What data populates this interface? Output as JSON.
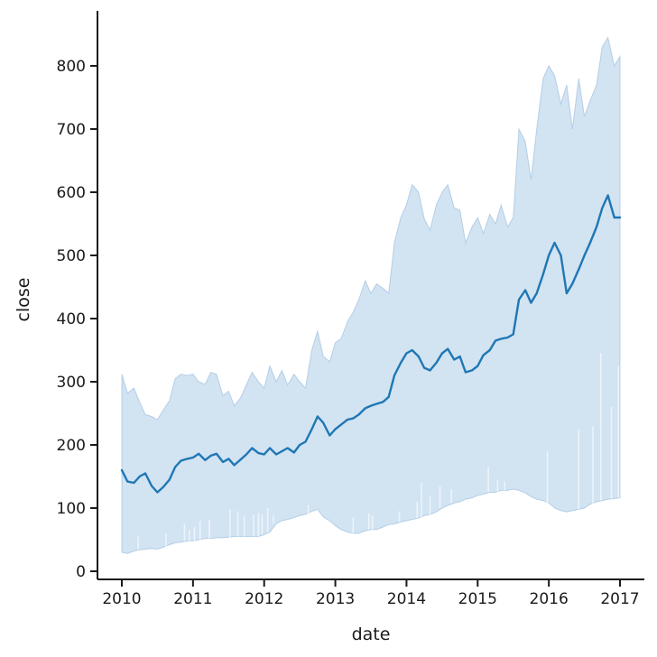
{
  "chart_data": {
    "type": "line",
    "title": "",
    "xlabel": "date",
    "ylabel": "close",
    "xlim": [
      2009.9,
      2017.35
    ],
    "ylim": [
      -12,
      887
    ],
    "x_ticks": [
      2010,
      2011,
      2012,
      2013,
      2014,
      2015,
      2016,
      2017
    ],
    "x_tick_labels": [
      "2010",
      "2011",
      "2012",
      "2013",
      "2014",
      "2015",
      "2016",
      "2017"
    ],
    "y_ticks": [
      0,
      100,
      200,
      300,
      400,
      500,
      600,
      700,
      800
    ],
    "y_tick_labels": [
      "0",
      "100",
      "200",
      "300",
      "400",
      "500",
      "600",
      "700",
      "800"
    ],
    "grid": false,
    "legend": "none",
    "colors": {
      "line": "#1f77b4",
      "band": "#a6c8e6",
      "band_edge": "#8db5da",
      "axis": "#1a1a1a"
    },
    "series": [
      {
        "values": [
          [
            2010.0,
            160
          ],
          [
            2010.08,
            142
          ],
          [
            2010.17,
            140
          ],
          [
            2010.25,
            150
          ],
          [
            2010.33,
            155
          ],
          [
            2010.42,
            135
          ],
          [
            2010.5,
            125
          ],
          [
            2010.58,
            133
          ],
          [
            2010.67,
            145
          ],
          [
            2010.75,
            165
          ],
          [
            2010.83,
            175
          ],
          [
            2010.92,
            178
          ],
          [
            2011.0,
            180
          ],
          [
            2011.08,
            186
          ],
          [
            2011.17,
            176
          ],
          [
            2011.25,
            183
          ],
          [
            2011.33,
            186
          ],
          [
            2011.42,
            173
          ],
          [
            2011.5,
            178
          ],
          [
            2011.58,
            168
          ],
          [
            2011.67,
            177
          ],
          [
            2011.75,
            185
          ],
          [
            2011.83,
            195
          ],
          [
            2011.92,
            187
          ],
          [
            2012.0,
            185
          ],
          [
            2012.08,
            195
          ],
          [
            2012.17,
            185
          ],
          [
            2012.25,
            190
          ],
          [
            2012.33,
            195
          ],
          [
            2012.42,
            188
          ],
          [
            2012.5,
            200
          ],
          [
            2012.58,
            205
          ],
          [
            2012.67,
            225
          ],
          [
            2012.75,
            245
          ],
          [
            2012.83,
            235
          ],
          [
            2012.92,
            215
          ],
          [
            2013.0,
            225
          ],
          [
            2013.08,
            232
          ],
          [
            2013.17,
            240
          ],
          [
            2013.25,
            242
          ],
          [
            2013.33,
            248
          ],
          [
            2013.42,
            258
          ],
          [
            2013.5,
            262
          ],
          [
            2013.58,
            265
          ],
          [
            2013.67,
            268
          ],
          [
            2013.75,
            276
          ],
          [
            2013.83,
            310
          ],
          [
            2013.92,
            330
          ],
          [
            2014.0,
            345
          ],
          [
            2014.08,
            350
          ],
          [
            2014.17,
            340
          ],
          [
            2014.25,
            322
          ],
          [
            2014.33,
            318
          ],
          [
            2014.42,
            330
          ],
          [
            2014.5,
            345
          ],
          [
            2014.58,
            352
          ],
          [
            2014.67,
            335
          ],
          [
            2014.75,
            340
          ],
          [
            2014.83,
            315
          ],
          [
            2014.92,
            318
          ],
          [
            2015.0,
            325
          ],
          [
            2015.08,
            342
          ],
          [
            2015.17,
            350
          ],
          [
            2015.25,
            365
          ],
          [
            2015.33,
            368
          ],
          [
            2015.42,
            370
          ],
          [
            2015.5,
            375
          ],
          [
            2015.58,
            430
          ],
          [
            2015.67,
            445
          ],
          [
            2015.75,
            425
          ],
          [
            2015.83,
            440
          ],
          [
            2015.92,
            470
          ],
          [
            2016.0,
            500
          ],
          [
            2016.08,
            520
          ],
          [
            2016.17,
            500
          ],
          [
            2016.25,
            440
          ],
          [
            2016.33,
            455
          ],
          [
            2016.42,
            478
          ],
          [
            2016.5,
            500
          ],
          [
            2016.58,
            520
          ],
          [
            2016.67,
            545
          ],
          [
            2016.75,
            575
          ],
          [
            2016.83,
            595
          ],
          [
            2016.92,
            560
          ],
          [
            2017.0,
            560
          ]
        ]
      }
    ],
    "band_upper": [
      [
        2010.0,
        312
      ],
      [
        2010.08,
        282
      ],
      [
        2010.17,
        290
      ],
      [
        2010.25,
        268
      ],
      [
        2010.33,
        248
      ],
      [
        2010.42,
        245
      ],
      [
        2010.5,
        240
      ],
      [
        2010.58,
        255
      ],
      [
        2010.67,
        270
      ],
      [
        2010.75,
        305
      ],
      [
        2010.83,
        312
      ],
      [
        2010.92,
        310
      ],
      [
        2011.0,
        312
      ],
      [
        2011.08,
        300
      ],
      [
        2011.17,
        296
      ],
      [
        2011.25,
        315
      ],
      [
        2011.33,
        312
      ],
      [
        2011.42,
        278
      ],
      [
        2011.5,
        285
      ],
      [
        2011.58,
        262
      ],
      [
        2011.67,
        275
      ],
      [
        2011.75,
        295
      ],
      [
        2011.83,
        315
      ],
      [
        2011.92,
        300
      ],
      [
        2012.0,
        290
      ],
      [
        2012.08,
        325
      ],
      [
        2012.17,
        300
      ],
      [
        2012.25,
        318
      ],
      [
        2012.33,
        295
      ],
      [
        2012.42,
        312
      ],
      [
        2012.5,
        300
      ],
      [
        2012.58,
        290
      ],
      [
        2012.67,
        350
      ],
      [
        2012.75,
        380
      ],
      [
        2012.83,
        340
      ],
      [
        2012.92,
        332
      ],
      [
        2013.0,
        362
      ],
      [
        2013.08,
        368
      ],
      [
        2013.17,
        395
      ],
      [
        2013.25,
        410
      ],
      [
        2013.33,
        430
      ],
      [
        2013.42,
        460
      ],
      [
        2013.5,
        440
      ],
      [
        2013.58,
        455
      ],
      [
        2013.67,
        448
      ],
      [
        2013.75,
        440
      ],
      [
        2013.83,
        520
      ],
      [
        2013.92,
        560
      ],
      [
        2014.0,
        580
      ],
      [
        2014.08,
        612
      ],
      [
        2014.17,
        600
      ],
      [
        2014.25,
        558
      ],
      [
        2014.33,
        540
      ],
      [
        2014.42,
        580
      ],
      [
        2014.5,
        600
      ],
      [
        2014.58,
        612
      ],
      [
        2014.67,
        575
      ],
      [
        2014.75,
        572
      ],
      [
        2014.83,
        520
      ],
      [
        2014.92,
        545
      ],
      [
        2015.0,
        560
      ],
      [
        2015.08,
        535
      ],
      [
        2015.17,
        565
      ],
      [
        2015.25,
        550
      ],
      [
        2015.33,
        580
      ],
      [
        2015.42,
        545
      ],
      [
        2015.5,
        560
      ],
      [
        2015.58,
        700
      ],
      [
        2015.67,
        680
      ],
      [
        2015.75,
        620
      ],
      [
        2015.83,
        700
      ],
      [
        2015.92,
        780
      ],
      [
        2016.0,
        800
      ],
      [
        2016.08,
        785
      ],
      [
        2016.17,
        740
      ],
      [
        2016.25,
        770
      ],
      [
        2016.33,
        700
      ],
      [
        2016.42,
        780
      ],
      [
        2016.5,
        720
      ],
      [
        2016.58,
        745
      ],
      [
        2016.67,
        770
      ],
      [
        2016.75,
        830
      ],
      [
        2016.83,
        845
      ],
      [
        2016.92,
        800
      ],
      [
        2017.0,
        815
      ]
    ],
    "band_lower": [
      [
        2010.0,
        30
      ],
      [
        2010.08,
        28
      ],
      [
        2010.17,
        32
      ],
      [
        2010.25,
        34
      ],
      [
        2010.33,
        35
      ],
      [
        2010.42,
        36
      ],
      [
        2010.5,
        35
      ],
      [
        2010.58,
        38
      ],
      [
        2010.67,
        42
      ],
      [
        2010.75,
        45
      ],
      [
        2010.83,
        46
      ],
      [
        2010.92,
        48
      ],
      [
        2011.0,
        48
      ],
      [
        2011.08,
        50
      ],
      [
        2011.17,
        52
      ],
      [
        2011.25,
        52
      ],
      [
        2011.33,
        53
      ],
      [
        2011.42,
        53
      ],
      [
        2011.5,
        54
      ],
      [
        2011.58,
        55
      ],
      [
        2011.67,
        55
      ],
      [
        2011.75,
        55
      ],
      [
        2011.83,
        55
      ],
      [
        2011.92,
        55
      ],
      [
        2012.0,
        58
      ],
      [
        2012.08,
        62
      ],
      [
        2012.17,
        75
      ],
      [
        2012.25,
        80
      ],
      [
        2012.33,
        82
      ],
      [
        2012.42,
        85
      ],
      [
        2012.5,
        88
      ],
      [
        2012.58,
        90
      ],
      [
        2012.67,
        95
      ],
      [
        2012.75,
        98
      ],
      [
        2012.83,
        86
      ],
      [
        2012.92,
        80
      ],
      [
        2013.0,
        72
      ],
      [
        2013.08,
        66
      ],
      [
        2013.17,
        62
      ],
      [
        2013.25,
        60
      ],
      [
        2013.33,
        60
      ],
      [
        2013.42,
        64
      ],
      [
        2013.5,
        66
      ],
      [
        2013.58,
        66
      ],
      [
        2013.67,
        70
      ],
      [
        2013.75,
        74
      ],
      [
        2013.83,
        75
      ],
      [
        2013.92,
        78
      ],
      [
        2014.0,
        80
      ],
      [
        2014.08,
        82
      ],
      [
        2014.17,
        84
      ],
      [
        2014.25,
        88
      ],
      [
        2014.33,
        90
      ],
      [
        2014.42,
        94
      ],
      [
        2014.5,
        100
      ],
      [
        2014.58,
        104
      ],
      [
        2014.67,
        108
      ],
      [
        2014.75,
        110
      ],
      [
        2014.83,
        114
      ],
      [
        2014.92,
        116
      ],
      [
        2015.0,
        120
      ],
      [
        2015.08,
        122
      ],
      [
        2015.17,
        125
      ],
      [
        2015.25,
        125
      ],
      [
        2015.33,
        128
      ],
      [
        2015.42,
        128
      ],
      [
        2015.5,
        130
      ],
      [
        2015.58,
        128
      ],
      [
        2015.67,
        124
      ],
      [
        2015.75,
        118
      ],
      [
        2015.83,
        114
      ],
      [
        2015.92,
        112
      ],
      [
        2016.0,
        108
      ],
      [
        2016.08,
        100
      ],
      [
        2016.17,
        96
      ],
      [
        2016.25,
        94
      ],
      [
        2016.33,
        96
      ],
      [
        2016.42,
        98
      ],
      [
        2016.5,
        100
      ],
      [
        2016.58,
        106
      ],
      [
        2016.67,
        110
      ],
      [
        2016.75,
        112
      ],
      [
        2016.83,
        114
      ],
      [
        2016.92,
        115
      ],
      [
        2017.0,
        116
      ]
    ],
    "lower_spikes": [
      [
        2010.23,
        55
      ],
      [
        2010.62,
        60
      ],
      [
        2010.88,
        75
      ],
      [
        2010.95,
        65
      ],
      [
        2011.02,
        70
      ],
      [
        2011.1,
        80
      ],
      [
        2011.23,
        82
      ],
      [
        2011.52,
        98
      ],
      [
        2011.63,
        95
      ],
      [
        2011.72,
        88
      ],
      [
        2011.85,
        90
      ],
      [
        2011.92,
        92
      ],
      [
        2011.97,
        90
      ],
      [
        2012.05,
        100
      ],
      [
        2012.13,
        88
      ],
      [
        2012.62,
        105
      ],
      [
        2013.25,
        85
      ],
      [
        2013.47,
        92
      ],
      [
        2013.52,
        88
      ],
      [
        2013.9,
        95
      ],
      [
        2014.15,
        110
      ],
      [
        2014.21,
        140
      ],
      [
        2014.33,
        120
      ],
      [
        2014.47,
        135
      ],
      [
        2014.63,
        130
      ],
      [
        2015.15,
        165
      ],
      [
        2015.28,
        145
      ],
      [
        2015.38,
        142
      ],
      [
        2015.98,
        190
      ],
      [
        2016.42,
        225
      ],
      [
        2016.62,
        230
      ],
      [
        2016.73,
        345
      ],
      [
        2016.88,
        260
      ],
      [
        2016.98,
        325
      ]
    ]
  }
}
